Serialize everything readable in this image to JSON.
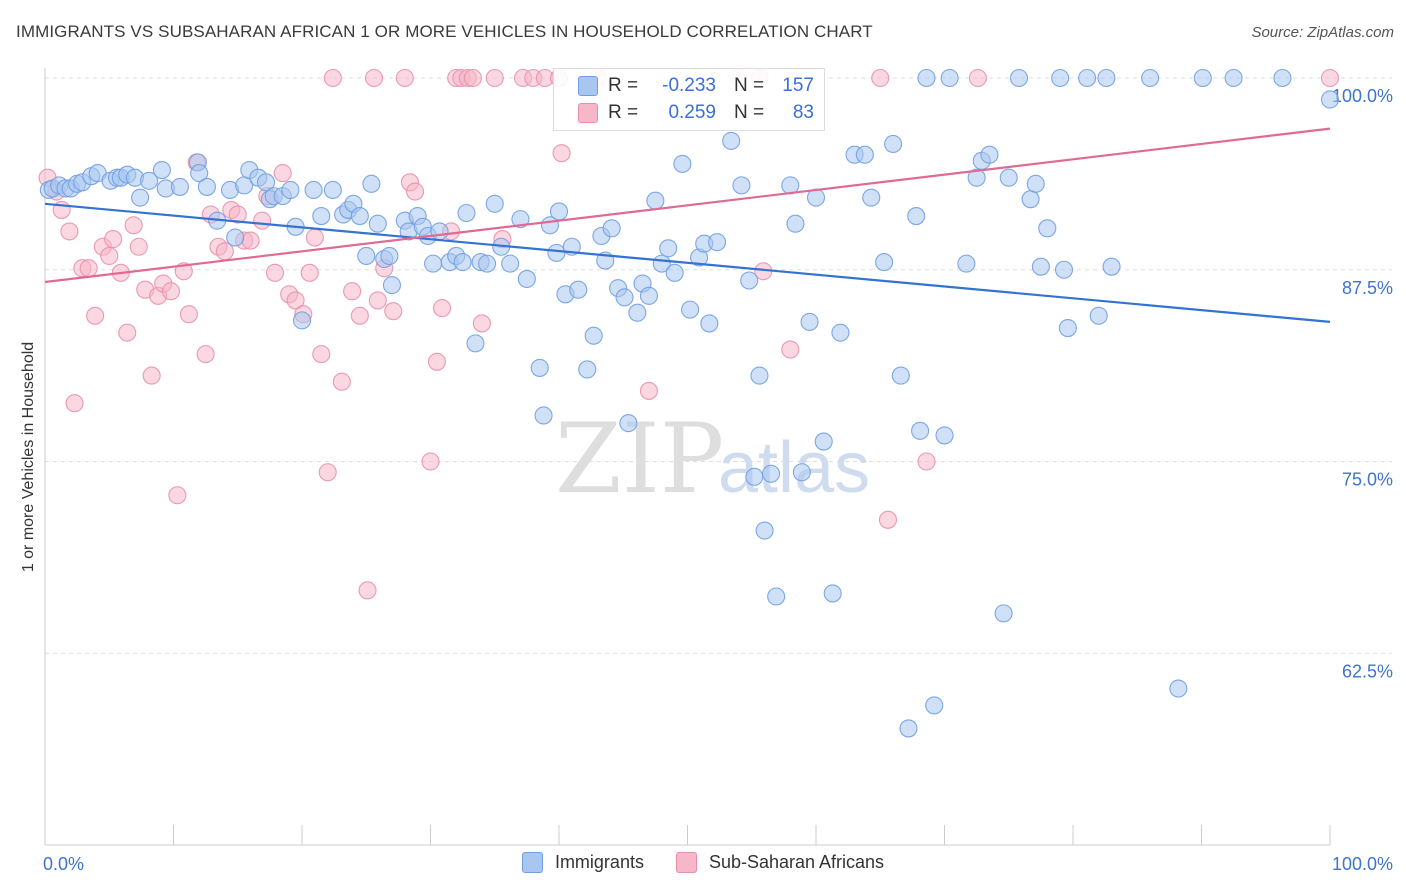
{
  "title": "IMMIGRANTS VS SUBSAHARAN AFRICAN 1 OR MORE VEHICLES IN HOUSEHOLD CORRELATION CHART",
  "source": "Source: ZipAtlas.com",
  "watermark": {
    "zip": "ZIP",
    "atlas": "atlas"
  },
  "legend": {
    "immigrants": {
      "r_label": "R =",
      "r_value": "-0.233",
      "n_label": "N =",
      "n_value": "157"
    },
    "subsaharan": {
      "r_label": "R =",
      "r_value": "0.259",
      "n_label": "N =",
      "n_value": "83"
    }
  },
  "colors": {
    "immigrants_fill": "#a9c6f0",
    "immigrants_stroke": "#6f9ee3",
    "immigrants_line": "#3373d1",
    "subsaharan_fill": "#f6b7c9",
    "subsaharan_stroke": "#e98fad",
    "subsaharan_line": "#e06a94",
    "tick_label": "#3f73cf",
    "grid": "#dddddd"
  },
  "chart_data": {
    "type": "scatter",
    "xlabel": "",
    "ylabel": "1 or more Vehicles in Household",
    "xlim": [
      0,
      100
    ],
    "ylim": [
      50,
      100
    ],
    "x_tick_labels": [
      "0.0%",
      "100.0%"
    ],
    "y_ticks": [
      62.5,
      75.0,
      87.5,
      100.0
    ],
    "y_tick_labels": [
      "62.5%",
      "75.0%",
      "87.5%",
      "100.0%"
    ],
    "grid": "horizontal dashed",
    "legend_position": "top-center",
    "series": [
      {
        "name": "Immigrants",
        "trend": {
          "x": [
            0,
            100
          ],
          "y": [
            91.8,
            84.1
          ]
        },
        "points": [
          [
            0.3,
            92.7
          ],
          [
            0.6,
            92.8
          ],
          [
            1.1,
            93.0
          ],
          [
            1.6,
            92.8
          ],
          [
            2.0,
            92.8
          ],
          [
            2.5,
            93.1
          ],
          [
            2.9,
            93.2
          ],
          [
            3.6,
            93.6
          ],
          [
            4.1,
            93.8
          ],
          [
            5.1,
            93.3
          ],
          [
            5.6,
            93.5
          ],
          [
            5.9,
            93.5
          ],
          [
            6.4,
            93.7
          ],
          [
            7.0,
            93.5
          ],
          [
            7.4,
            92.2
          ],
          [
            8.1,
            93.3
          ],
          [
            9.1,
            94.0
          ],
          [
            9.4,
            92.8
          ],
          [
            10.5,
            92.9
          ],
          [
            11.9,
            94.5
          ],
          [
            12.0,
            93.8
          ],
          [
            12.6,
            92.9
          ],
          [
            13.4,
            90.7
          ],
          [
            14.4,
            92.7
          ],
          [
            14.8,
            89.6
          ],
          [
            15.5,
            93.0
          ],
          [
            15.9,
            94.0
          ],
          [
            16.6,
            93.5
          ],
          [
            17.2,
            93.2
          ],
          [
            17.5,
            92.1
          ],
          [
            17.8,
            92.3
          ],
          [
            18.5,
            92.3
          ],
          [
            19.1,
            92.7
          ],
          [
            19.5,
            90.3
          ],
          [
            20.0,
            84.2
          ],
          [
            20.9,
            92.7
          ],
          [
            21.5,
            91.0
          ],
          [
            22.4,
            92.7
          ],
          [
            23.2,
            91.1
          ],
          [
            23.6,
            91.4
          ],
          [
            24.0,
            91.8
          ],
          [
            24.5,
            91.0
          ],
          [
            25.0,
            88.4
          ],
          [
            25.4,
            93.1
          ],
          [
            25.9,
            90.5
          ],
          [
            26.4,
            88.2
          ],
          [
            26.8,
            88.4
          ],
          [
            27.0,
            86.5
          ],
          [
            28.0,
            90.7
          ],
          [
            28.3,
            90.0
          ],
          [
            29.0,
            91.0
          ],
          [
            29.4,
            90.3
          ],
          [
            29.8,
            89.7
          ],
          [
            30.2,
            87.9
          ],
          [
            30.7,
            90.0
          ],
          [
            31.5,
            88.0
          ],
          [
            32.0,
            88.4
          ],
          [
            32.5,
            88.0
          ],
          [
            32.8,
            91.2
          ],
          [
            33.5,
            82.7
          ],
          [
            33.9,
            88.0
          ],
          [
            34.4,
            87.9
          ],
          [
            35.0,
            91.8
          ],
          [
            35.5,
            89.0
          ],
          [
            36.2,
            87.9
          ],
          [
            37.0,
            90.8
          ],
          [
            37.5,
            86.9
          ],
          [
            38.5,
            81.1
          ],
          [
            38.8,
            78.0
          ],
          [
            39.3,
            90.4
          ],
          [
            39.8,
            88.6
          ],
          [
            40.0,
            91.3
          ],
          [
            40.5,
            85.9
          ],
          [
            41.0,
            89.0
          ],
          [
            41.5,
            86.2
          ],
          [
            42.2,
            81.0
          ],
          [
            42.7,
            83.2
          ],
          [
            43.3,
            89.7
          ],
          [
            43.6,
            88.1
          ],
          [
            44.1,
            90.2
          ],
          [
            44.6,
            86.3
          ],
          [
            45.1,
            85.7
          ],
          [
            45.4,
            77.5
          ],
          [
            46.1,
            84.7
          ],
          [
            46.5,
            86.6
          ],
          [
            47.0,
            85.8
          ],
          [
            47.5,
            92.0
          ],
          [
            48.0,
            87.9
          ],
          [
            48.5,
            88.9
          ],
          [
            49.0,
            87.3
          ],
          [
            49.6,
            94.4
          ],
          [
            50.2,
            84.9
          ],
          [
            50.9,
            88.3
          ],
          [
            51.3,
            89.2
          ],
          [
            51.7,
            84.0
          ],
          [
            52.3,
            89.3
          ],
          [
            53.4,
            95.9
          ],
          [
            54.2,
            93.0
          ],
          [
            54.8,
            86.8
          ],
          [
            55.2,
            74.0
          ],
          [
            55.6,
            80.6
          ],
          [
            56.0,
            70.5
          ],
          [
            56.5,
            74.2
          ],
          [
            56.9,
            66.2
          ],
          [
            58.0,
            93.0
          ],
          [
            58.4,
            90.5
          ],
          [
            58.9,
            74.3
          ],
          [
            59.5,
            84.1
          ],
          [
            60.0,
            92.2
          ],
          [
            60.6,
            76.3
          ],
          [
            61.3,
            66.4
          ],
          [
            61.9,
            83.4
          ],
          [
            63.0,
            95.0
          ],
          [
            63.8,
            95.0
          ],
          [
            64.3,
            92.2
          ],
          [
            65.3,
            88.0
          ],
          [
            66.0,
            95.7
          ],
          [
            66.6,
            80.6
          ],
          [
            67.2,
            57.6
          ],
          [
            67.8,
            91.0
          ],
          [
            68.1,
            77.0
          ],
          [
            68.6,
            100.0
          ],
          [
            69.2,
            59.1
          ],
          [
            70.0,
            76.7
          ],
          [
            70.4,
            100.0
          ],
          [
            71.7,
            87.9
          ],
          [
            72.5,
            93.5
          ],
          [
            72.9,
            94.6
          ],
          [
            73.5,
            95.0
          ],
          [
            74.6,
            65.1
          ],
          [
            75.0,
            93.5
          ],
          [
            75.8,
            100.0
          ],
          [
            76.7,
            92.1
          ],
          [
            77.1,
            93.1
          ],
          [
            77.5,
            87.7
          ],
          [
            78.0,
            90.2
          ],
          [
            79.0,
            100.0
          ],
          [
            79.3,
            87.5
          ],
          [
            79.6,
            83.7
          ],
          [
            81.1,
            100.0
          ],
          [
            82.0,
            84.5
          ],
          [
            82.6,
            100.0
          ],
          [
            83.0,
            87.7
          ],
          [
            86.0,
            100.0
          ],
          [
            88.2,
            60.2
          ],
          [
            90.1,
            100.0
          ],
          [
            92.5,
            100.0
          ],
          [
            96.3,
            100.0
          ],
          [
            100.0,
            98.6
          ]
        ]
      },
      {
        "name": "Sub-Saharan Africans",
        "trend": {
          "x": [
            0,
            100
          ],
          "y": [
            86.7,
            96.7
          ]
        },
        "points": [
          [
            0.2,
            93.5
          ],
          [
            0.9,
            92.6
          ],
          [
            1.3,
            91.4
          ],
          [
            1.9,
            90.0
          ],
          [
            2.3,
            78.8
          ],
          [
            2.9,
            87.6
          ],
          [
            3.4,
            87.6
          ],
          [
            3.9,
            84.5
          ],
          [
            4.5,
            89.0
          ],
          [
            5.0,
            88.4
          ],
          [
            5.3,
            89.5
          ],
          [
            5.9,
            87.3
          ],
          [
            6.4,
            83.4
          ],
          [
            6.9,
            90.4
          ],
          [
            7.3,
            89.0
          ],
          [
            7.8,
            86.2
          ],
          [
            8.3,
            80.6
          ],
          [
            8.8,
            85.8
          ],
          [
            9.2,
            86.6
          ],
          [
            9.8,
            86.1
          ],
          [
            10.3,
            72.8
          ],
          [
            10.8,
            87.4
          ],
          [
            11.2,
            84.6
          ],
          [
            11.8,
            94.5
          ],
          [
            12.5,
            82.0
          ],
          [
            12.9,
            91.1
          ],
          [
            13.5,
            89.0
          ],
          [
            14.0,
            88.7
          ],
          [
            14.5,
            91.4
          ],
          [
            15.0,
            91.1
          ],
          [
            15.5,
            89.4
          ],
          [
            16.0,
            89.4
          ],
          [
            16.9,
            90.7
          ],
          [
            17.3,
            92.3
          ],
          [
            17.9,
            87.3
          ],
          [
            18.5,
            93.8
          ],
          [
            19.0,
            85.9
          ],
          [
            19.5,
            85.5
          ],
          [
            20.1,
            84.6
          ],
          [
            20.6,
            87.3
          ],
          [
            21.0,
            89.6
          ],
          [
            21.5,
            82.0
          ],
          [
            22.0,
            74.3
          ],
          [
            22.4,
            100.0
          ],
          [
            23.1,
            80.2
          ],
          [
            23.9,
            86.1
          ],
          [
            24.5,
            84.5
          ],
          [
            25.1,
            66.6
          ],
          [
            25.6,
            100.0
          ],
          [
            25.9,
            85.5
          ],
          [
            26.4,
            87.6
          ],
          [
            27.1,
            84.8
          ],
          [
            28.4,
            93.2
          ],
          [
            28.8,
            92.6
          ],
          [
            28.0,
            100.0
          ],
          [
            30.0,
            75.0
          ],
          [
            30.5,
            81.5
          ],
          [
            30.9,
            85.0
          ],
          [
            31.6,
            90.0
          ],
          [
            32.0,
            100.0
          ],
          [
            32.4,
            100.0
          ],
          [
            32.9,
            100.0
          ],
          [
            33.3,
            100.0
          ],
          [
            34.0,
            84.0
          ],
          [
            35.0,
            100.0
          ],
          [
            35.6,
            89.5
          ],
          [
            37.2,
            100.0
          ],
          [
            38.0,
            100.0
          ],
          [
            38.9,
            100.0
          ],
          [
            40.0,
            100.0
          ],
          [
            40.2,
            95.1
          ],
          [
            42.0,
            97.4
          ],
          [
            43.0,
            100.0
          ],
          [
            47.0,
            79.6
          ],
          [
            54.0,
            100.0
          ],
          [
            55.6,
            100.0
          ],
          [
            55.9,
            87.4
          ],
          [
            58.0,
            82.3
          ],
          [
            65.0,
            100.0
          ],
          [
            65.6,
            71.2
          ],
          [
            68.6,
            75.0
          ],
          [
            72.6,
            100.0
          ],
          [
            100.0,
            100.0
          ]
        ]
      }
    ]
  }
}
